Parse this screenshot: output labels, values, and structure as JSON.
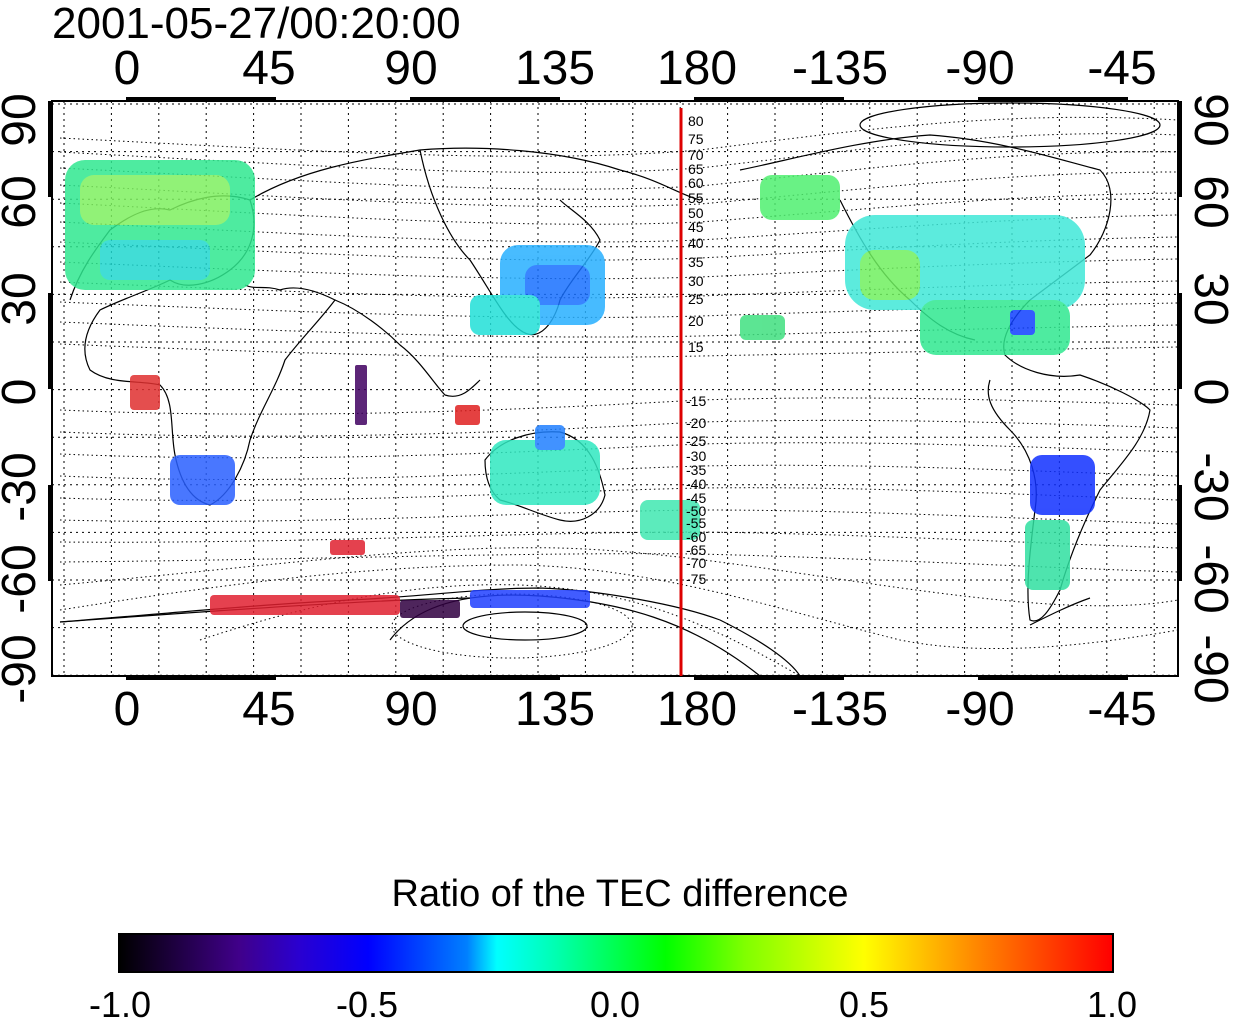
{
  "timestamp": "2001-05-27/00:20:00",
  "axes": {
    "lon_ticks": [
      "0",
      "45",
      "90",
      "135",
      "180",
      "-135",
      "-90",
      "-45"
    ],
    "lat_ticks": [
      "90",
      "60",
      "30",
      "0",
      "-30",
      "-60",
      "-90"
    ]
  },
  "contour_labels": {
    "north": [
      "80",
      "75",
      "70",
      "65",
      "60",
      "55",
      "50",
      "45",
      "40",
      "35",
      "30",
      "25",
      "20",
      "15"
    ],
    "south": [
      "-15",
      "-20",
      "-25",
      "-30",
      "-35",
      "-40",
      "-45",
      "-50",
      "-55",
      "-60",
      "-65",
      "-70",
      "-75"
    ]
  },
  "colorbar": {
    "title": "Ratio of the TEC difference",
    "labels": [
      "-1.0",
      "-0.5",
      "0.0",
      "0.5",
      "1.0"
    ],
    "colors": [
      "#000000",
      "#40008a",
      "#0000ff",
      "#00ffff",
      "#00ff00",
      "#ffff00",
      "#ff0000"
    ]
  },
  "meridian_line_color": "#dd0000"
}
